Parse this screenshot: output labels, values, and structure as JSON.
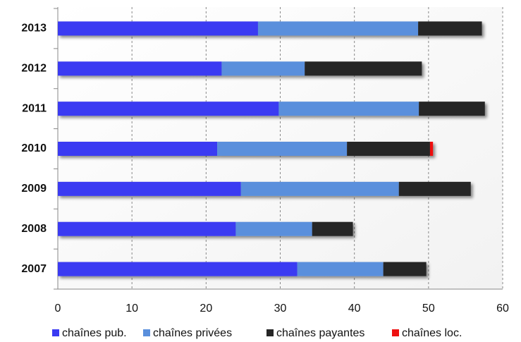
{
  "chart_data": {
    "type": "stacked_bar_horizontal",
    "categories": [
      "2013",
      "2012",
      "2011",
      "2010",
      "2009",
      "2008",
      "2007"
    ],
    "series": [
      {
        "name": "chaînes pub.",
        "color": "#3a3af2",
        "values": [
          27.0,
          22.1,
          29.8,
          21.5,
          24.7,
          24.0,
          32.3
        ]
      },
      {
        "name": "chaînes privées",
        "color": "#5a8fdc",
        "values": [
          21.6,
          11.2,
          18.9,
          17.5,
          21.3,
          10.3,
          11.6
        ]
      },
      {
        "name": "chaînes payantes",
        "color": "#262626",
        "values": [
          8.6,
          15.8,
          8.9,
          11.2,
          9.7,
          5.5,
          5.8
        ]
      },
      {
        "name": "chaînes loc.",
        "color": "#ee1111",
        "values": [
          0,
          0,
          0,
          0.4,
          0,
          0,
          0
        ]
      }
    ],
    "xlim": [
      0,
      60
    ],
    "xticks": [
      0,
      10,
      20,
      30,
      40,
      50,
      60
    ],
    "grid": true,
    "legend": "bottom"
  }
}
